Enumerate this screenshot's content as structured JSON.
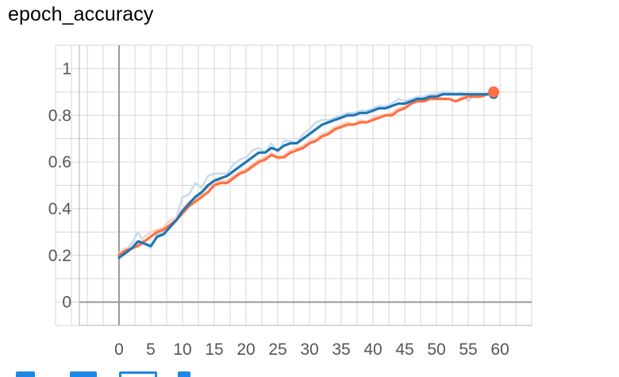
{
  "chart_data": {
    "type": "line",
    "title": "epoch_accuracy",
    "xlim": [
      -10,
      65
    ],
    "ylim": [
      -0.1,
      1.1
    ],
    "x_ticks": [
      0,
      5,
      10,
      15,
      20,
      25,
      30,
      35,
      40,
      45,
      50,
      55,
      60
    ],
    "y_ticks": [
      0,
      0.2,
      0.4,
      0.6,
      0.8,
      1
    ],
    "y_tick_labels": [
      "0",
      "0.2",
      "0.4",
      "0.6",
      "0.8",
      "1"
    ],
    "grid": true,
    "colors": {
      "series_a": "#1f77b4",
      "series_b": "#ff7043",
      "raw_a": "#c7dbef",
      "raw_b": "#fcd3c2",
      "grid": "#d6d6d6",
      "axis": "#999999"
    },
    "series": [
      {
        "color": "#1f77b4",
        "values": [
          0.19,
          0.21,
          0.23,
          0.26,
          0.25,
          0.24,
          0.28,
          0.29,
          0.32,
          0.35,
          0.39,
          0.42,
          0.45,
          0.47,
          0.5,
          0.52,
          0.53,
          0.54,
          0.56,
          0.58,
          0.6,
          0.62,
          0.64,
          0.64,
          0.66,
          0.65,
          0.67,
          0.68,
          0.68,
          0.7,
          0.72,
          0.74,
          0.76,
          0.77,
          0.78,
          0.79,
          0.8,
          0.8,
          0.81,
          0.81,
          0.82,
          0.83,
          0.83,
          0.84,
          0.85,
          0.85,
          0.86,
          0.87,
          0.87,
          0.88,
          0.88,
          0.89,
          0.89,
          0.89,
          0.89,
          0.89,
          0.89,
          0.89,
          0.89,
          0.89
        ]
      },
      {
        "color": "#ff7043",
        "values": [
          0.2,
          0.22,
          0.23,
          0.24,
          0.26,
          0.28,
          0.3,
          0.31,
          0.33,
          0.35,
          0.38,
          0.41,
          0.43,
          0.45,
          0.47,
          0.5,
          0.51,
          0.51,
          0.53,
          0.55,
          0.56,
          0.58,
          0.6,
          0.61,
          0.63,
          0.62,
          0.62,
          0.64,
          0.65,
          0.66,
          0.68,
          0.69,
          0.71,
          0.72,
          0.74,
          0.75,
          0.76,
          0.76,
          0.77,
          0.77,
          0.78,
          0.79,
          0.8,
          0.8,
          0.82,
          0.83,
          0.85,
          0.86,
          0.86,
          0.87,
          0.87,
          0.87,
          0.87,
          0.86,
          0.87,
          0.88,
          0.88,
          0.88,
          0.89,
          0.9
        ]
      }
    ],
    "raw_series": [
      {
        "color": "#c7dbef",
        "values": [
          0.19,
          0.22,
          0.25,
          0.3,
          0.25,
          0.23,
          0.29,
          0.3,
          0.33,
          0.36,
          0.45,
          0.46,
          0.51,
          0.49,
          0.54,
          0.55,
          0.55,
          0.55,
          0.59,
          0.61,
          0.62,
          0.65,
          0.66,
          0.64,
          0.68,
          0.64,
          0.69,
          0.69,
          0.68,
          0.72,
          0.74,
          0.77,
          0.78,
          0.78,
          0.79,
          0.8,
          0.81,
          0.81,
          0.82,
          0.82,
          0.83,
          0.84,
          0.84,
          0.85,
          0.87,
          0.86,
          0.87,
          0.88,
          0.88,
          0.89,
          0.89,
          0.9,
          0.9,
          0.89,
          0.9,
          0.86,
          0.89,
          0.88,
          0.89,
          0.89
        ]
      },
      {
        "color": "#fcd3c2",
        "values": [
          0.21,
          0.23,
          0.23,
          0.25,
          0.28,
          0.3,
          0.31,
          0.32,
          0.35,
          0.36,
          0.4,
          0.43,
          0.44,
          0.46,
          0.49,
          0.51,
          0.52,
          0.52,
          0.54,
          0.56,
          0.57,
          0.59,
          0.61,
          0.62,
          0.64,
          0.61,
          0.63,
          0.65,
          0.66,
          0.67,
          0.69,
          0.7,
          0.72,
          0.73,
          0.75,
          0.76,
          0.77,
          0.76,
          0.78,
          0.77,
          0.79,
          0.8,
          0.8,
          0.81,
          0.83,
          0.84,
          0.86,
          0.87,
          0.86,
          0.87,
          0.88,
          0.87,
          0.87,
          0.86,
          0.88,
          0.89,
          0.88,
          0.89,
          0.89,
          0.9
        ]
      }
    ],
    "last_point_marker": {
      "x": 59,
      "y": 0.9,
      "color": "#ff7043"
    }
  }
}
